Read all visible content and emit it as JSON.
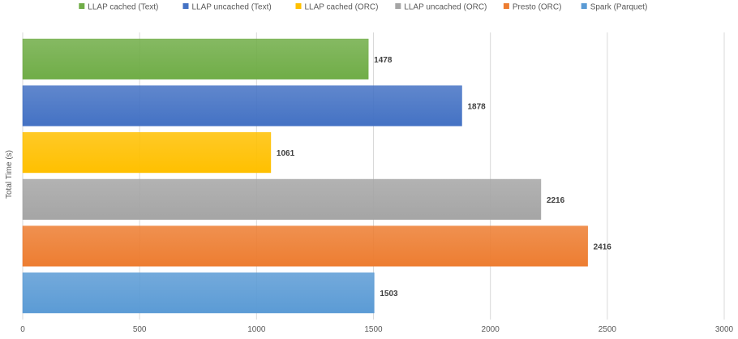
{
  "chart_data": {
    "type": "bar",
    "orientation": "horizontal",
    "title": "",
    "xlabel": "",
    "ylabel": "Total Time (s)",
    "xlim": [
      0,
      3000
    ],
    "x_ticks": [
      0,
      500,
      1000,
      1500,
      2000,
      2500,
      3000
    ],
    "grid": true,
    "legend_position": "top",
    "series": [
      {
        "name": "LLAP cached (Text)",
        "value": 1478,
        "color": "#70ad47",
        "label": "1478"
      },
      {
        "name": "LLAP uncached (Text)",
        "value": 1878,
        "color": "#4472c4",
        "label": "1878"
      },
      {
        "name": "LLAP cached (ORC)",
        "value": 1061,
        "color": "#ffc000",
        "label": "1061"
      },
      {
        "name": "LLAP uncached (ORC)",
        "value": 2216,
        "color": "#a5a5a5",
        "label": "2216"
      },
      {
        "name": "Presto (ORC)",
        "value": 2416,
        "color": "#ed7d31",
        "label": "2416"
      },
      {
        "name": "Spark (Parquet)",
        "value": 1503,
        "color": "#5b9bd5",
        "label": "1503"
      }
    ]
  }
}
